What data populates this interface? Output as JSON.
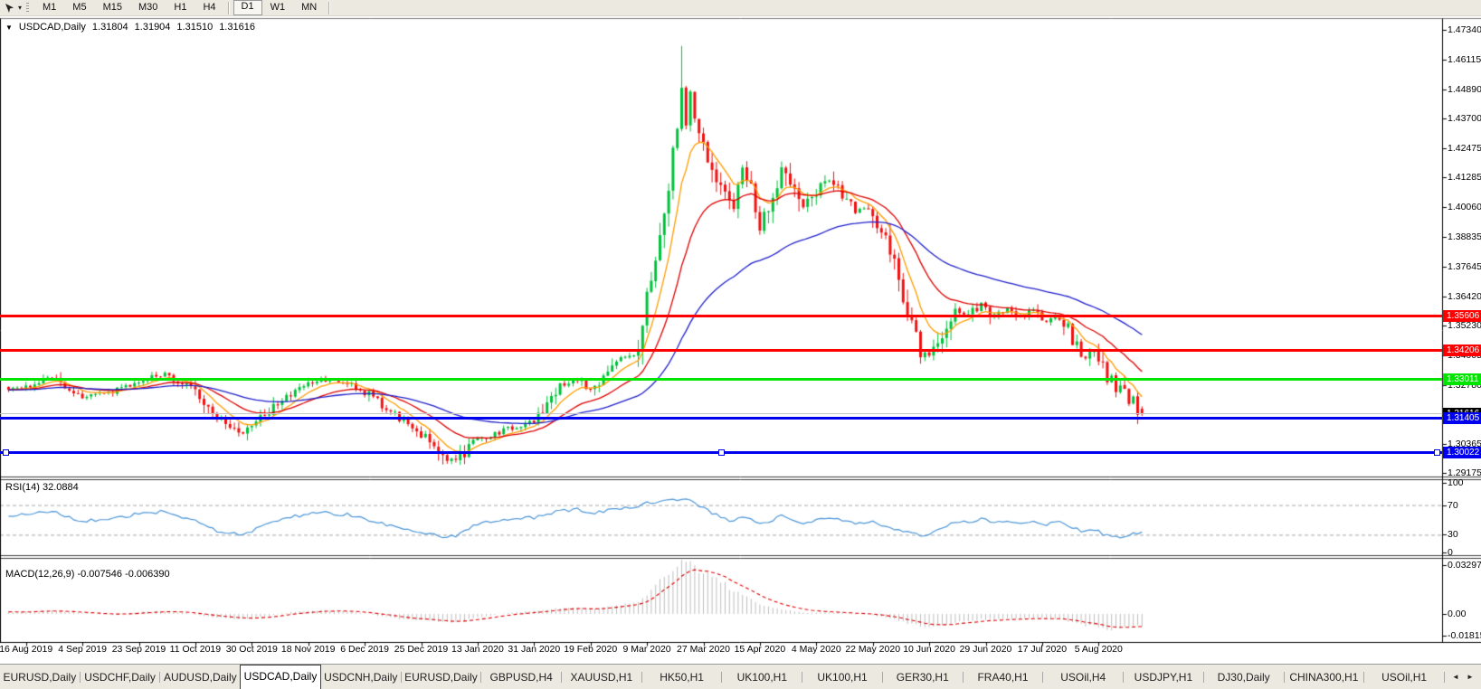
{
  "toolbar": {
    "dropdown_icon": "▾",
    "timeframes": [
      {
        "label": "M1",
        "active": false,
        "sep_before": false
      },
      {
        "label": "M5",
        "active": false,
        "sep_before": false
      },
      {
        "label": "M15",
        "active": false,
        "sep_before": false
      },
      {
        "label": "M30",
        "active": false,
        "sep_before": false
      },
      {
        "label": "H1",
        "active": false,
        "sep_before": false
      },
      {
        "label": "H4",
        "active": false,
        "sep_before": false
      },
      {
        "label": "D1",
        "active": true,
        "sep_before": true
      },
      {
        "label": "W1",
        "active": false,
        "sep_before": false
      },
      {
        "label": "MN",
        "active": false,
        "sep_before": false
      }
    ]
  },
  "chart_header": {
    "collapse_icon": "▼",
    "symbol": "USDCAD,Daily",
    "open": "1.31804",
    "high": "1.31904",
    "low": "1.31510",
    "close": "1.31616"
  },
  "chart_data": {
    "type": "candlestick",
    "symbol": "USDCAD",
    "timeframe": "Daily",
    "up_color": "#00c23b",
    "down_color": "#f01212",
    "y_ticks": [
      "1.47340",
      "1.46115",
      "1.44890",
      "1.43700",
      "1.42475",
      "1.41285",
      "1.40060",
      "1.38835",
      "1.37645",
      "1.36420",
      "1.35230",
      "1.34005",
      "1.32780",
      "1.31555",
      "1.30365",
      "1.29175"
    ],
    "x_labels": [
      "16 Aug 2019",
      "4 Sep 2019",
      "23 Sep 2019",
      "11 Oct 2019",
      "30 Oct 2019",
      "18 Nov 2019",
      "6 Dec 2019",
      "25 Dec 2019",
      "13 Jan 2020",
      "31 Jan 2020",
      "19 Feb 2020",
      "9 Mar 2020",
      "27 Mar 2020",
      "15 Apr 2020",
      "4 May 2020",
      "22 May 2020",
      "10 Jun 2020",
      "29 Jun 2020",
      "17 Jul 2020",
      "5 Aug 2020"
    ],
    "x_label_indices": [
      4,
      17,
      30,
      43,
      56,
      69,
      82,
      95,
      108,
      121,
      134,
      147,
      160,
      173,
      186,
      199,
      212,
      225,
      238,
      251
    ],
    "candle_count": 262,
    "seed": 1337,
    "close_anchors": [
      [
        0,
        1.3262
      ],
      [
        4,
        1.327
      ],
      [
        10,
        1.3315
      ],
      [
        17,
        1.323
      ],
      [
        24,
        1.325
      ],
      [
        30,
        1.3295
      ],
      [
        36,
        1.3325
      ],
      [
        43,
        1.3255
      ],
      [
        49,
        1.3135
      ],
      [
        54,
        1.3075
      ],
      [
        60,
        1.317
      ],
      [
        66,
        1.326
      ],
      [
        72,
        1.33
      ],
      [
        78,
        1.3285
      ],
      [
        82,
        1.325
      ],
      [
        88,
        1.317
      ],
      [
        95,
        1.308
      ],
      [
        100,
        1.298
      ],
      [
        103,
        1.2965
      ],
      [
        108,
        1.3055
      ],
      [
        114,
        1.309
      ],
      [
        121,
        1.3135
      ],
      [
        127,
        1.327
      ],
      [
        131,
        1.33
      ],
      [
        134,
        1.326
      ],
      [
        138,
        1.332
      ],
      [
        142,
        1.3395
      ],
      [
        145,
        1.342
      ],
      [
        147,
        1.366
      ],
      [
        149,
        1.376
      ],
      [
        151,
        1.398
      ],
      [
        153,
        1.422
      ],
      [
        155,
        1.45
      ],
      [
        156,
        1.435
      ],
      [
        157,
        1.448
      ],
      [
        159,
        1.43
      ],
      [
        162,
        1.415
      ],
      [
        165,
        1.405
      ],
      [
        167,
        1.4
      ],
      [
        169,
        1.415
      ],
      [
        171,
        1.408
      ],
      [
        173,
        1.393
      ],
      [
        176,
        1.405
      ],
      [
        178,
        1.418
      ],
      [
        180,
        1.41
      ],
      [
        183,
        1.4
      ],
      [
        186,
        1.407
      ],
      [
        189,
        1.412
      ],
      [
        192,
        1.405
      ],
      [
        195,
        1.399
      ],
      [
        198,
        1.4
      ],
      [
        201,
        1.39
      ],
      [
        204,
        1.378
      ],
      [
        207,
        1.357
      ],
      [
        210,
        1.342
      ],
      [
        212,
        1.34
      ],
      [
        215,
        1.349
      ],
      [
        218,
        1.358
      ],
      [
        221,
        1.356
      ],
      [
        224,
        1.362
      ],
      [
        227,
        1.356
      ],
      [
        230,
        1.359
      ],
      [
        233,
        1.356
      ],
      [
        236,
        1.358
      ],
      [
        239,
        1.354
      ],
      [
        242,
        1.356
      ],
      [
        244,
        1.35
      ],
      [
        246,
        1.343
      ],
      [
        248,
        1.339
      ],
      [
        250,
        1.343
      ],
      [
        252,
        1.334
      ],
      [
        253,
        1.329
      ],
      [
        254,
        1.332
      ],
      [
        255,
        1.326
      ],
      [
        256,
        1.329
      ],
      [
        257,
        1.323
      ],
      [
        258,
        1.32
      ],
      [
        259,
        1.323
      ],
      [
        260,
        1.3175
      ],
      [
        261,
        1.3162
      ]
    ],
    "max_high": {
      "index": 155,
      "value": 1.4668
    },
    "min_low": {
      "index": 100,
      "value": 1.2952
    },
    "moving_averages": [
      {
        "name": "ma-fast",
        "period": 8,
        "color": "#ff9c00"
      },
      {
        "name": "ma-mid",
        "period": 21,
        "color": "#e00000"
      },
      {
        "name": "ma-slow",
        "period": 55,
        "color": "#2020cc"
      }
    ],
    "h_lines": [
      {
        "label": "1.35606",
        "price": 1.35606,
        "color": "#ff0000",
        "thickness": 3,
        "selected": false
      },
      {
        "label": "1.34206",
        "price": 1.34206,
        "color": "#ff0000",
        "thickness": 3,
        "selected": false
      },
      {
        "label": "1.33011",
        "price": 1.33011,
        "color": "#00e400",
        "thickness": 3,
        "selected": false
      },
      {
        "label": "1.31405",
        "price": 1.31405,
        "color": "#0000f0",
        "thickness": 3,
        "selected": false
      },
      {
        "label": "1.30022",
        "price": 1.30022,
        "color": "#0000f0",
        "thickness": 3,
        "selected": true
      }
    ],
    "last_price": {
      "label": "1.31616",
      "value": 1.31616,
      "line_color": "#c4c4c4",
      "badge_color": "#000000"
    }
  },
  "rsi": {
    "label": "RSI(14) 32.0884",
    "period": 14,
    "current": 32.0884,
    "color": "#4d96d8",
    "axis_labels": [
      "100",
      "70",
      "30",
      "0"
    ],
    "levels": [
      70,
      30
    ],
    "anchors": [
      [
        0,
        55
      ],
      [
        4,
        58
      ],
      [
        10,
        62
      ],
      [
        17,
        48
      ],
      [
        24,
        52
      ],
      [
        30,
        58
      ],
      [
        36,
        62
      ],
      [
        43,
        48
      ],
      [
        49,
        32
      ],
      [
        54,
        30
      ],
      [
        60,
        45
      ],
      [
        66,
        55
      ],
      [
        72,
        60
      ],
      [
        78,
        57
      ],
      [
        82,
        52
      ],
      [
        88,
        42
      ],
      [
        95,
        34
      ],
      [
        100,
        26
      ],
      [
        103,
        28
      ],
      [
        108,
        45
      ],
      [
        114,
        50
      ],
      [
        121,
        53
      ],
      [
        127,
        62
      ],
      [
        131,
        64
      ],
      [
        134,
        58
      ],
      [
        138,
        63
      ],
      [
        142,
        67
      ],
      [
        145,
        68
      ],
      [
        147,
        74
      ],
      [
        149,
        73
      ],
      [
        151,
        75
      ],
      [
        153,
        76
      ],
      [
        155,
        78
      ],
      [
        157,
        75
      ],
      [
        159,
        68
      ],
      [
        162,
        60
      ],
      [
        165,
        52
      ],
      [
        167,
        48
      ],
      [
        169,
        54
      ],
      [
        171,
        50
      ],
      [
        173,
        44
      ],
      [
        176,
        50
      ],
      [
        178,
        55
      ],
      [
        180,
        51
      ],
      [
        183,
        46
      ],
      [
        186,
        50
      ],
      [
        189,
        53
      ],
      [
        192,
        49
      ],
      [
        195,
        46
      ],
      [
        198,
        48
      ],
      [
        201,
        43
      ],
      [
        204,
        38
      ],
      [
        207,
        33
      ],
      [
        210,
        30
      ],
      [
        212,
        31
      ],
      [
        215,
        40
      ],
      [
        218,
        48
      ],
      [
        221,
        46
      ],
      [
        224,
        52
      ],
      [
        227,
        47
      ],
      [
        230,
        50
      ],
      [
        233,
        46
      ],
      [
        236,
        49
      ],
      [
        239,
        44
      ],
      [
        242,
        47
      ],
      [
        244,
        41
      ],
      [
        246,
        37
      ],
      [
        248,
        34
      ],
      [
        250,
        38
      ],
      [
        252,
        31
      ],
      [
        254,
        27
      ],
      [
        256,
        26
      ],
      [
        258,
        30
      ],
      [
        260,
        33
      ],
      [
        261,
        32
      ]
    ]
  },
  "macd": {
    "label": "MACD(12,26,9) -0.007546 -0.006390",
    "macd_value": -0.007546,
    "signal_value": -0.00639,
    "histogram_color": "#bebebe",
    "signal_color": "#e00000",
    "axis_labels": [
      "0.032972",
      "0.00",
      "-0.018154"
    ],
    "anchors": [
      [
        0,
        0.0012
      ],
      [
        4,
        0.0015
      ],
      [
        10,
        0.0022
      ],
      [
        17,
        0.0005
      ],
      [
        24,
        -0.0005
      ],
      [
        30,
        0.0012
      ],
      [
        36,
        0.002
      ],
      [
        43,
        -0.0002
      ],
      [
        49,
        -0.0028
      ],
      [
        54,
        -0.0035
      ],
      [
        60,
        -0.0012
      ],
      [
        66,
        0.0015
      ],
      [
        72,
        0.0025
      ],
      [
        78,
        0.0018
      ],
      [
        82,
        0.0002
      ],
      [
        88,
        -0.0025
      ],
      [
        95,
        -0.0042
      ],
      [
        100,
        -0.0055
      ],
      [
        103,
        -0.005
      ],
      [
        108,
        -0.0022
      ],
      [
        114,
        0.0005
      ],
      [
        121,
        0.0018
      ],
      [
        127,
        0.004
      ],
      [
        131,
        0.0042
      ],
      [
        134,
        0.003
      ],
      [
        138,
        0.0045
      ],
      [
        142,
        0.0062
      ],
      [
        145,
        0.0075
      ],
      [
        147,
        0.012
      ],
      [
        149,
        0.018
      ],
      [
        151,
        0.024
      ],
      [
        153,
        0.029
      ],
      [
        155,
        0.0325
      ],
      [
        156,
        0.033
      ],
      [
        157,
        0.032
      ],
      [
        159,
        0.029
      ],
      [
        162,
        0.024
      ],
      [
        165,
        0.019
      ],
      [
        167,
        0.015
      ],
      [
        169,
        0.012
      ],
      [
        171,
        0.009
      ],
      [
        173,
        0.006
      ],
      [
        176,
        0.004
      ],
      [
        178,
        0.003
      ],
      [
        180,
        0.0022
      ],
      [
        183,
        0.001
      ],
      [
        186,
        0.0008
      ],
      [
        189,
        0.001
      ],
      [
        192,
        0.0005
      ],
      [
        195,
        -0.0002
      ],
      [
        198,
        -0.0005
      ],
      [
        201,
        -0.0018
      ],
      [
        204,
        -0.0035
      ],
      [
        207,
        -0.006
      ],
      [
        210,
        -0.008
      ],
      [
        212,
        -0.0085
      ],
      [
        215,
        -0.0072
      ],
      [
        218,
        -0.0055
      ],
      [
        221,
        -0.0048
      ],
      [
        224,
        -0.0035
      ],
      [
        227,
        -0.0035
      ],
      [
        230,
        -0.003
      ],
      [
        233,
        -0.0032
      ],
      [
        236,
        -0.0028
      ],
      [
        239,
        -0.0032
      ],
      [
        242,
        -0.003
      ],
      [
        244,
        -0.0045
      ],
      [
        246,
        -0.0062
      ],
      [
        248,
        -0.0075
      ],
      [
        250,
        -0.0072
      ],
      [
        252,
        -0.0088
      ],
      [
        254,
        -0.01
      ],
      [
        256,
        -0.0095
      ],
      [
        258,
        -0.0085
      ],
      [
        260,
        -0.0078
      ],
      [
        261,
        -0.0075
      ]
    ]
  },
  "tabs": {
    "scroll_left": "◄",
    "scroll_right": "►",
    "items": [
      {
        "label": "EURUSD,Daily",
        "active": false
      },
      {
        "label": "USDCHF,Daily",
        "active": false
      },
      {
        "label": "AUDUSD,Daily",
        "active": false
      },
      {
        "label": "USDCAD,Daily",
        "active": true
      },
      {
        "label": "USDCNH,Daily",
        "active": false
      },
      {
        "label": "EURUSD,Daily",
        "active": false
      },
      {
        "label": "GBPUSD,H4",
        "active": false
      },
      {
        "label": "XAUUSD,H1",
        "active": false
      },
      {
        "label": "HK50,H1",
        "active": false
      },
      {
        "label": "UK100,H1",
        "active": false
      },
      {
        "label": "UK100,H1",
        "active": false
      },
      {
        "label": "GER30,H1",
        "active": false
      },
      {
        "label": "FRA40,H1",
        "active": false
      },
      {
        "label": "USOil,H4",
        "active": false
      },
      {
        "label": "USDJPY,H1",
        "active": false
      },
      {
        "label": "DJ30,Daily",
        "active": false
      },
      {
        "label": "CHINA300,H1",
        "active": false
      },
      {
        "label": "USOil,H1",
        "active": false
      }
    ]
  }
}
